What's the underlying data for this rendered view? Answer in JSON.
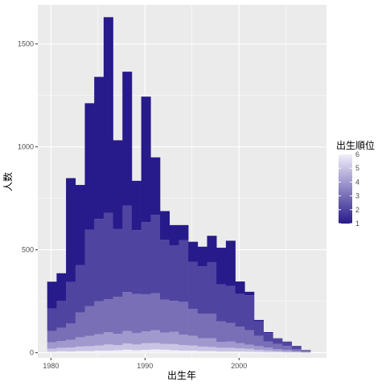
{
  "chart_data": {
    "type": "bar",
    "stacked": true,
    "xlabel": "出生年",
    "ylabel": "人数",
    "xlim": [
      1978.6,
      2009.3
    ],
    "ylim": [
      -25,
      1690
    ],
    "xticks": [
      1980,
      1990,
      2000
    ],
    "yticks": [
      0,
      500,
      1000,
      1500
    ],
    "grid": true,
    "legend": {
      "title": "出生順位",
      "position": "right",
      "ticks": [
        1,
        2,
        3,
        4,
        5,
        6
      ],
      "color_low": "#271a8a",
      "color_high": "#f1eefa"
    },
    "x": [
      1979.6,
      1980.6,
      1981.6,
      1982.6,
      1983.6,
      1984.6,
      1985.6,
      1986.6,
      1987.6,
      1988.6,
      1989.6,
      1990.6,
      1991.6,
      1992.6,
      1993.6,
      1994.6,
      1995.6,
      1996.6,
      1997.6,
      1998.6,
      1999.6,
      2000.6,
      2001.6,
      2002.6,
      2003.6,
      2004.6,
      2005.6,
      2006.6
    ],
    "bin_width": 1,
    "series": [
      {
        "name": "6",
        "values": [
          5,
          7,
          6,
          8,
          8,
          10,
          10,
          12,
          15,
          12,
          14,
          16,
          15,
          12,
          10,
          10,
          8,
          8,
          6,
          6,
          6,
          5,
          4,
          2,
          2,
          1,
          1,
          0
        ]
      },
      {
        "name": "5",
        "values": [
          15,
          17,
          19,
          22,
          24,
          25,
          30,
          25,
          30,
          28,
          32,
          31,
          28,
          30,
          27,
          25,
          22,
          20,
          18,
          18,
          15,
          14,
          10,
          9,
          6,
          4,
          3,
          2
        ]
      },
      {
        "name": "4",
        "values": [
          30,
          32,
          38,
          45,
          50,
          55,
          60,
          55,
          60,
          55,
          58,
          62,
          55,
          60,
          50,
          47,
          40,
          42,
          28,
          30,
          25,
          20,
          18,
          14,
          10,
          8,
          4,
          2
        ]
      },
      {
        "name": "3",
        "values": [
          55,
          65,
          80,
          120,
          145,
          160,
          160,
          180,
          190,
          190,
          180,
          180,
          160,
          150,
          160,
          130,
          120,
          120,
          100,
          90,
          80,
          70,
          50,
          30,
          25,
          20,
          10,
          5
        ]
      },
      {
        "name": "2",
        "values": [
          110,
          130,
          200,
          230,
          370,
          400,
          420,
          330,
          420,
          310,
          350,
          380,
          290,
          270,
          300,
          230,
          230,
          250,
          180,
          180,
          160,
          170,
          70,
          40,
          25,
          20,
          14,
          4
        ]
      },
      {
        "name": "1",
        "values": [
          130,
          135,
          505,
          390,
          615,
          690,
          950,
          430,
          650,
          240,
          610,
          280,
          140,
          98,
          73,
          97,
          95,
          128,
          178,
          220,
          60,
          17,
          7,
          5,
          2,
          1,
          1,
          0
        ]
      }
    ]
  }
}
